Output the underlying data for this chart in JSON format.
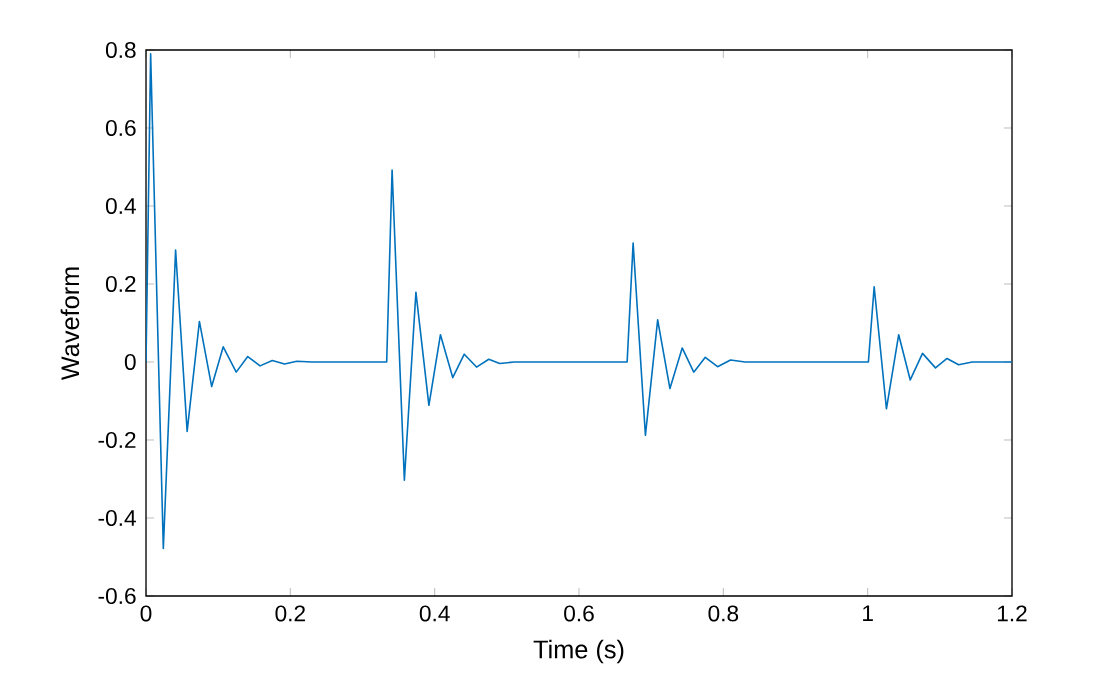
{
  "chart_data": {
    "type": "line",
    "xlabel": "Time (s)",
    "ylabel": "Waveform",
    "xlim": [
      0,
      1.2
    ],
    "ylim": [
      -0.6,
      0.8
    ],
    "xticks": [
      0,
      0.2,
      0.4,
      0.6,
      0.8,
      1,
      1.2
    ],
    "yticks": [
      -0.6,
      -0.4,
      -0.2,
      0,
      0.2,
      0.4,
      0.6,
      0.8
    ],
    "grid": false,
    "marker": "none",
    "line_style": "solid",
    "series": [
      {
        "color": "#0072bd",
        "x": [
          0,
          0.0064,
          0.024,
          0.041,
          0.057,
          0.074,
          0.091,
          0.107,
          0.125,
          0.141,
          0.158,
          0.175,
          0.192,
          0.209,
          0.23,
          0.26,
          0.3,
          0.333,
          0.3335,
          0.341,
          0.358,
          0.374,
          0.392,
          0.408,
          0.425,
          0.441,
          0.458,
          0.475,
          0.49,
          0.51,
          0.55,
          0.6,
          0.666,
          0.6667,
          0.675,
          0.692,
          0.709,
          0.726,
          0.743,
          0.759,
          0.775,
          0.792,
          0.81,
          0.83,
          0.87,
          0.93,
          0.999,
          1.001,
          1.009,
          1.026,
          1.043,
          1.059,
          1.076,
          1.094,
          1.11,
          1.126,
          1.145,
          1.17,
          1.2
        ],
        "values": [
          0,
          0.79,
          -0.478,
          0.287,
          -0.178,
          0.104,
          -0.063,
          0.039,
          -0.026,
          0.014,
          -0.01,
          0.004,
          -0.005,
          0.002,
          0,
          0,
          0,
          0,
          0,
          0.492,
          -0.303,
          0.179,
          -0.111,
          0.07,
          -0.04,
          0.02,
          -0.013,
          0.007,
          -0.004,
          0,
          0,
          0,
          0,
          0,
          0.305,
          -0.188,
          0.108,
          -0.068,
          0.036,
          -0.026,
          0.012,
          -0.012,
          0.005,
          0,
          0,
          0,
          0,
          0,
          0.193,
          -0.12,
          0.07,
          -0.046,
          0.022,
          -0.015,
          0.009,
          -0.007,
          0,
          0,
          0
        ]
      }
    ]
  }
}
